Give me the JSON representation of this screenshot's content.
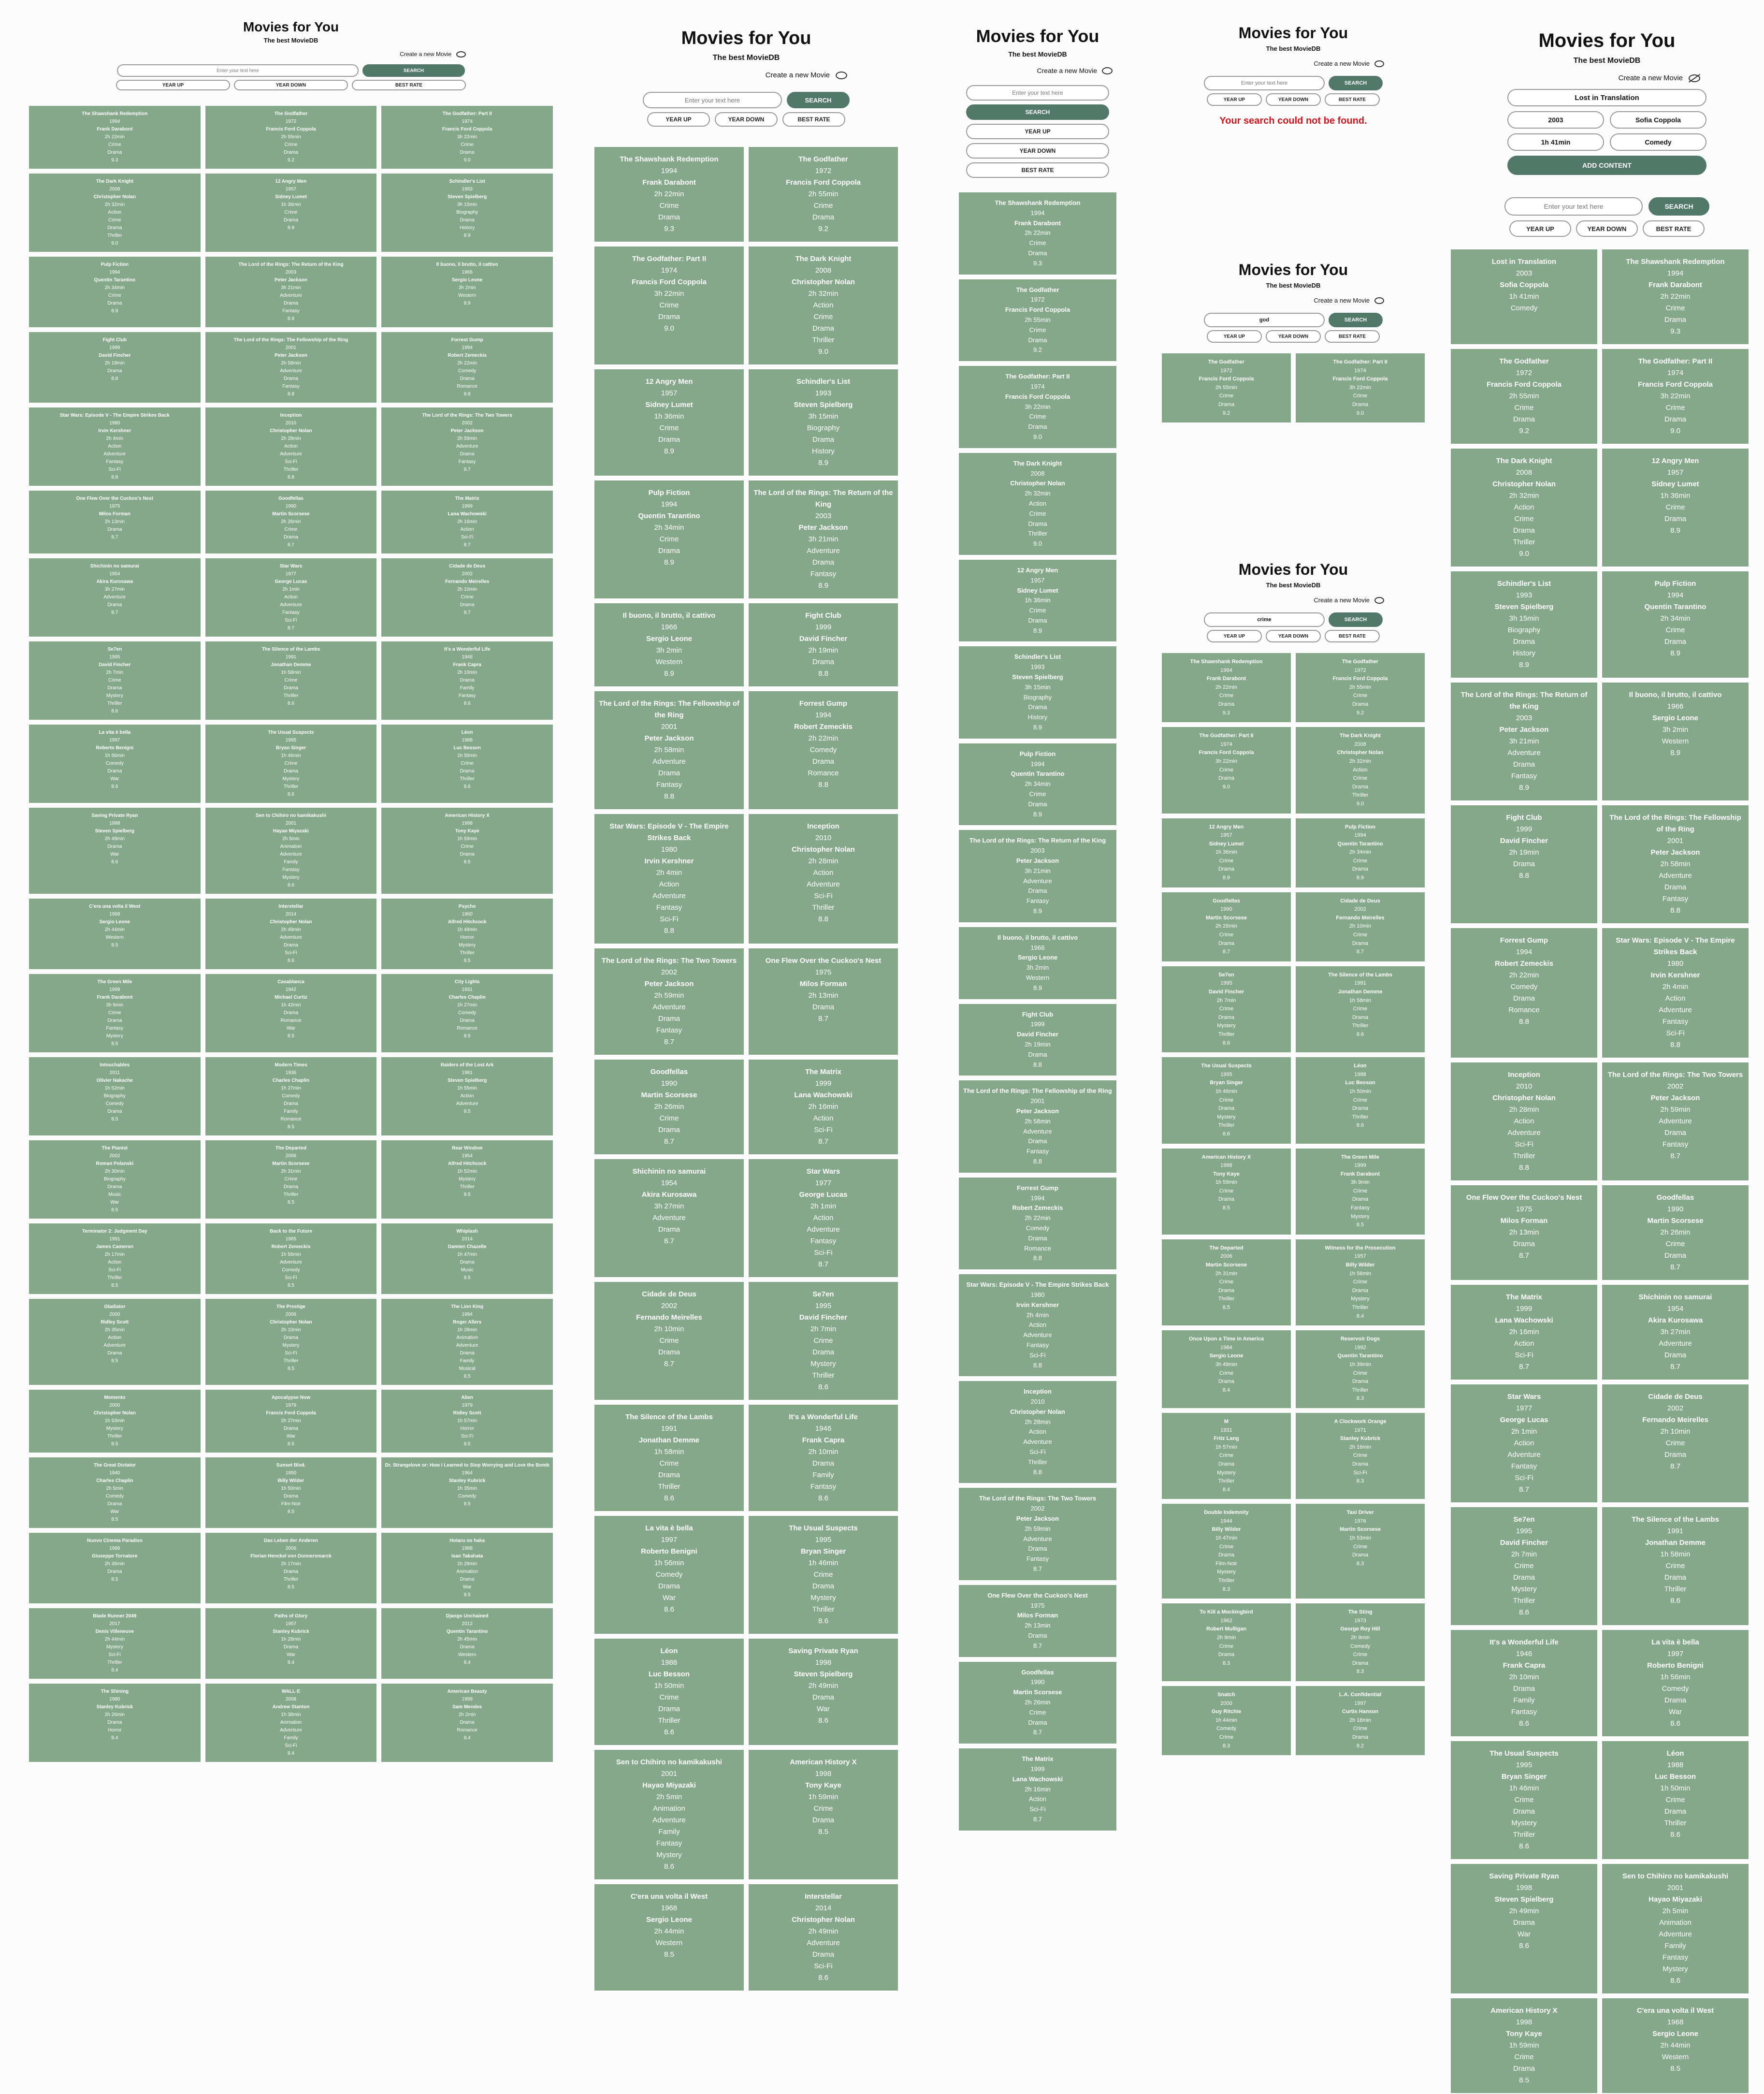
{
  "app": {
    "title": "Movies for You",
    "subtitle": "The best MovieDB",
    "create_label": "Create a new Movie",
    "search_placeholder": "Enter your text here",
    "search_label": "SEARCH",
    "year_up": "YEAR UP",
    "year_down": "YEAR DOWN",
    "best_rate": "BEST RATE",
    "add_content": "ADD CONTENT",
    "not_found": "Your search could not be found."
  },
  "form": {
    "title": "Lost in Translation",
    "year": "2003",
    "director": "Sofia Coppola",
    "duration": "1h 41min",
    "genre": "Comedy"
  },
  "queries": {
    "god": "god",
    "crime": "crime"
  },
  "movies": [
    {
      "t": "The Shawshank Redemption",
      "y": "1994",
      "d": "Frank Darabont",
      "r": "2h 22min",
      "g": [
        "Crime",
        "Drama"
      ],
      "s": "9.3"
    },
    {
      "t": "The Godfather",
      "y": "1972",
      "d": "Francis Ford Coppola",
      "r": "2h 55min",
      "g": [
        "Crime",
        "Drama"
      ],
      "s": "9.2"
    },
    {
      "t": "The Godfather: Part II",
      "y": "1974",
      "d": "Francis Ford Coppola",
      "r": "3h 22min",
      "g": [
        "Crime",
        "Drama"
      ],
      "s": "9.0"
    },
    {
      "t": "The Dark Knight",
      "y": "2008",
      "d": "Christopher Nolan",
      "r": "2h 32min",
      "g": [
        "Action",
        "Crime",
        "Drama",
        "Thriller"
      ],
      "s": "9.0"
    },
    {
      "t": "12 Angry Men",
      "y": "1957",
      "d": "Sidney Lumet",
      "r": "1h 36min",
      "g": [
        "Crime",
        "Drama"
      ],
      "s": "8.9"
    },
    {
      "t": "Schindler's List",
      "y": "1993",
      "d": "Steven Spielberg",
      "r": "3h 15min",
      "g": [
        "Biography",
        "Drama",
        "History"
      ],
      "s": "8.9"
    },
    {
      "t": "Pulp Fiction",
      "y": "1994",
      "d": "Quentin Tarantino",
      "r": "2h 34min",
      "g": [
        "Crime",
        "Drama"
      ],
      "s": "8.9"
    },
    {
      "t": "The Lord of the Rings: The Return of the King",
      "y": "2003",
      "d": "Peter Jackson",
      "r": "3h 21min",
      "g": [
        "Adventure",
        "Drama",
        "Fantasy"
      ],
      "s": "8.9"
    },
    {
      "t": "Il buono, il brutto, il cattivo",
      "y": "1966",
      "d": "Sergio Leone",
      "r": "3h 2min",
      "g": [
        "Western"
      ],
      "s": "8.9"
    },
    {
      "t": "Fight Club",
      "y": "1999",
      "d": "David Fincher",
      "r": "2h 19min",
      "g": [
        "Drama"
      ],
      "s": "8.8"
    },
    {
      "t": "The Lord of the Rings: The Fellowship of the Ring",
      "y": "2001",
      "d": "Peter Jackson",
      "r": "2h 58min",
      "g": [
        "Adventure",
        "Drama",
        "Fantasy"
      ],
      "s": "8.8"
    },
    {
      "t": "Forrest Gump",
      "y": "1994",
      "d": "Robert Zemeckis",
      "r": "2h 22min",
      "g": [
        "Comedy",
        "Drama",
        "Romance"
      ],
      "s": "8.8"
    },
    {
      "t": "Star Wars: Episode V - The Empire Strikes Back",
      "y": "1980",
      "d": "Irvin Kershner",
      "r": "2h 4min",
      "g": [
        "Action",
        "Adventure",
        "Fantasy",
        "Sci-Fi"
      ],
      "s": "8.8"
    },
    {
      "t": "Inception",
      "y": "2010",
      "d": "Christopher Nolan",
      "r": "2h 28min",
      "g": [
        "Action",
        "Adventure",
        "Sci-Fi",
        "Thriller"
      ],
      "s": "8.8"
    },
    {
      "t": "The Lord of the Rings: The Two Towers",
      "y": "2002",
      "d": "Peter Jackson",
      "r": "2h 59min",
      "g": [
        "Adventure",
        "Drama",
        "Fantasy"
      ],
      "s": "8.7"
    },
    {
      "t": "One Flew Over the Cuckoo's Nest",
      "y": "1975",
      "d": "Milos Forman",
      "r": "2h 13min",
      "g": [
        "Drama"
      ],
      "s": "8.7"
    },
    {
      "t": "Goodfellas",
      "y": "1990",
      "d": "Martin Scorsese",
      "r": "2h 26min",
      "g": [
        "Crime",
        "Drama"
      ],
      "s": "8.7"
    },
    {
      "t": "The Matrix",
      "y": "1999",
      "d": "Lana Wachowski",
      "r": "2h 16min",
      "g": [
        "Action",
        "Sci-Fi"
      ],
      "s": "8.7"
    },
    {
      "t": "Shichinin no samurai",
      "y": "1954",
      "d": "Akira Kurosawa",
      "r": "3h 27min",
      "g": [
        "Adventure",
        "Drama"
      ],
      "s": "8.7"
    },
    {
      "t": "Star Wars",
      "y": "1977",
      "d": "George Lucas",
      "r": "2h 1min",
      "g": [
        "Action",
        "Adventure",
        "Fantasy",
        "Sci-Fi"
      ],
      "s": "8.7"
    },
    {
      "t": "Cidade de Deus",
      "y": "2002",
      "d": "Fernando Meirelles",
      "r": "2h 10min",
      "g": [
        "Crime",
        "Drama"
      ],
      "s": "8.7"
    },
    {
      "t": "Se7en",
      "y": "1995",
      "d": "David Fincher",
      "r": "2h 7min",
      "g": [
        "Crime",
        "Drama",
        "Mystery",
        "Thriller"
      ],
      "s": "8.6"
    },
    {
      "t": "The Silence of the Lambs",
      "y": "1991",
      "d": "Jonathan Demme",
      "r": "1h 58min",
      "g": [
        "Crime",
        "Drama",
        "Thriller"
      ],
      "s": "8.6"
    },
    {
      "t": "It's a Wonderful Life",
      "y": "1946",
      "d": "Frank Capra",
      "r": "2h 10min",
      "g": [
        "Drama",
        "Family",
        "Fantasy"
      ],
      "s": "8.6"
    },
    {
      "t": "La vita è bella",
      "y": "1997",
      "d": "Roberto Benigni",
      "r": "1h 56min",
      "g": [
        "Comedy",
        "Drama",
        "War"
      ],
      "s": "8.6"
    },
    {
      "t": "The Usual Suspects",
      "y": "1995",
      "d": "Bryan Singer",
      "r": "1h 46min",
      "g": [
        "Crime",
        "Drama",
        "Mystery",
        "Thriller"
      ],
      "s": "8.6"
    },
    {
      "t": "Léon",
      "y": "1988",
      "d": "Luc Besson",
      "r": "1h 50min",
      "g": [
        "Crime",
        "Drama",
        "Thriller"
      ],
      "s": "8.6"
    },
    {
      "t": "Saving Private Ryan",
      "y": "1998",
      "d": "Steven Spielberg",
      "r": "2h 49min",
      "g": [
        "Drama",
        "War"
      ],
      "s": "8.6"
    },
    {
      "t": "Sen to Chihiro no kamikakushi",
      "y": "2001",
      "d": "Hayao Miyazaki",
      "r": "2h 5min",
      "g": [
        "Animation",
        "Adventure",
        "Family",
        "Fantasy",
        "Mystery"
      ],
      "s": "8.6"
    },
    {
      "t": "American History X",
      "y": "1998",
      "d": "Tony Kaye",
      "r": "1h 59min",
      "g": [
        "Crime",
        "Drama"
      ],
      "s": "8.5"
    },
    {
      "t": "C'era una volta il West",
      "y": "1968",
      "d": "Sergio Leone",
      "r": "2h 44min",
      "g": [
        "Western"
      ],
      "s": "8.5"
    },
    {
      "t": "Interstellar",
      "y": "2014",
      "d": "Christopher Nolan",
      "r": "2h 49min",
      "g": [
        "Adventure",
        "Drama",
        "Sci-Fi"
      ],
      "s": "8.6"
    },
    {
      "t": "Psycho",
      "y": "1960",
      "d": "Alfred Hitchcock",
      "r": "1h 49min",
      "g": [
        "Horror",
        "Mystery",
        "Thriller"
      ],
      "s": "8.5"
    },
    {
      "t": "The Green Mile",
      "y": "1999",
      "d": "Frank Darabont",
      "r": "3h 9min",
      "g": [
        "Crime",
        "Drama",
        "Fantasy",
        "Mystery"
      ],
      "s": "8.5"
    },
    {
      "t": "Casablanca",
      "y": "1942",
      "d": "Michael Curtiz",
      "r": "1h 42min",
      "g": [
        "Drama",
        "Romance",
        "War"
      ],
      "s": "8.5"
    },
    {
      "t": "City Lights",
      "y": "1931",
      "d": "Charles Chaplin",
      "r": "1h 27min",
      "g": [
        "Comedy",
        "Drama",
        "Romance"
      ],
      "s": "8.5"
    },
    {
      "t": "Intouchables",
      "y": "2011",
      "d": "Olivier Nakache",
      "r": "1h 52min",
      "g": [
        "Biography",
        "Comedy",
        "Drama"
      ],
      "s": "8.5"
    },
    {
      "t": "Modern Times",
      "y": "1936",
      "d": "Charles Chaplin",
      "r": "1h 27min",
      "g": [
        "Comedy",
        "Drama",
        "Family",
        "Romance"
      ],
      "s": "8.5"
    },
    {
      "t": "Raiders of the Lost Ark",
      "y": "1981",
      "d": "Steven Spielberg",
      "r": "1h 55min",
      "g": [
        "Action",
        "Adventure"
      ],
      "s": "8.5"
    },
    {
      "t": "The Pianist",
      "y": "2002",
      "d": "Roman Polanski",
      "r": "2h 30min",
      "g": [
        "Biography",
        "Drama",
        "Music",
        "War"
      ],
      "s": "8.5"
    },
    {
      "t": "The Departed",
      "y": "2006",
      "d": "Martin Scorsese",
      "r": "2h 31min",
      "g": [
        "Crime",
        "Drama",
        "Thriller"
      ],
      "s": "8.5"
    },
    {
      "t": "Rear Window",
      "y": "1954",
      "d": "Alfred Hitchcock",
      "r": "1h 52min",
      "g": [
        "Mystery",
        "Thriller"
      ],
      "s": "8.5"
    },
    {
      "t": "Terminator 2: Judgment Day",
      "y": "1991",
      "d": "James Cameron",
      "r": "2h 17min",
      "g": [
        "Action",
        "Sci-Fi",
        "Thriller"
      ],
      "s": "8.5"
    },
    {
      "t": "Back to the Future",
      "y": "1985",
      "d": "Robert Zemeckis",
      "r": "1h 56min",
      "g": [
        "Adventure",
        "Comedy",
        "Sci-Fi"
      ],
      "s": "8.5"
    },
    {
      "t": "Whiplash",
      "y": "2014",
      "d": "Damien Chazelle",
      "r": "1h 47min",
      "g": [
        "Drama",
        "Music"
      ],
      "s": "8.5"
    },
    {
      "t": "Gladiator",
      "y": "2000",
      "d": "Ridley Scott",
      "r": "2h 35min",
      "g": [
        "Action",
        "Adventure",
        "Drama"
      ],
      "s": "8.5"
    },
    {
      "t": "The Prestige",
      "y": "2006",
      "d": "Christopher Nolan",
      "r": "2h 10min",
      "g": [
        "Drama",
        "Mystery",
        "Sci-Fi",
        "Thriller"
      ],
      "s": "8.5"
    },
    {
      "t": "The Lion King",
      "y": "1994",
      "d": "Roger Allers",
      "r": "1h 28min",
      "g": [
        "Animation",
        "Adventure",
        "Drama",
        "Family",
        "Musical"
      ],
      "s": "8.5"
    },
    {
      "t": "Memento",
      "y": "2000",
      "d": "Christopher Nolan",
      "r": "1h 53min",
      "g": [
        "Mystery",
        "Thriller"
      ],
      "s": "8.5"
    },
    {
      "t": "Apocalypse Now",
      "y": "1979",
      "d": "Francis Ford Coppola",
      "r": "2h 27min",
      "g": [
        "Drama",
        "War"
      ],
      "s": "8.5"
    },
    {
      "t": "Alien",
      "y": "1979",
      "d": "Ridley Scott",
      "r": "1h 57min",
      "g": [
        "Horror",
        "Sci-Fi"
      ],
      "s": "8.5"
    },
    {
      "t": "The Great Dictator",
      "y": "1940",
      "d": "Charles Chaplin",
      "r": "2h 5min",
      "g": [
        "Comedy",
        "Drama",
        "War"
      ],
      "s": "8.5"
    },
    {
      "t": "Sunset Blvd.",
      "y": "1950",
      "d": "Billy Wilder",
      "r": "1h 50min",
      "g": [
        "Drama",
        "Film-Noir"
      ],
      "s": "8.5"
    },
    {
      "t": "Dr. Strangelove or: How I Learned to Stop Worrying and Love the Bomb",
      "y": "1964",
      "d": "Stanley Kubrick",
      "r": "1h 35min",
      "g": [
        "Comedy"
      ],
      "s": "8.5"
    },
    {
      "t": "Nuovo Cinema Paradiso",
      "y": "1988",
      "d": "Giuseppe Tornatore",
      "r": "2h 35min",
      "g": [
        "Drama"
      ],
      "s": "8.5"
    },
    {
      "t": "Das Leben der Anderen",
      "y": "2006",
      "d": "Florian Henckel von Donnersmarck",
      "r": "2h 17min",
      "g": [
        "Drama",
        "Thriller"
      ],
      "s": "8.5"
    },
    {
      "t": "Hotaru no haka",
      "y": "1988",
      "d": "Isao Takahata",
      "r": "1h 29min",
      "g": [
        "Animation",
        "Drama",
        "War"
      ],
      "s": "8.5"
    },
    {
      "t": "Blade Runner 2049",
      "y": "2017",
      "d": "Denis Villeneuve",
      "r": "2h 44min",
      "g": [
        "Mystery",
        "Sci-Fi",
        "Thriller"
      ],
      "s": "8.4"
    },
    {
      "t": "Paths of Glory",
      "y": "1957",
      "d": "Stanley Kubrick",
      "r": "1h 28min",
      "g": [
        "Drama",
        "War"
      ],
      "s": "8.4"
    },
    {
      "t": "Django Unchained",
      "y": "2012",
      "d": "Quentin Tarantino",
      "r": "2h 45min",
      "g": [
        "Drama",
        "Western"
      ],
      "s": "8.4"
    },
    {
      "t": "The Shining",
      "y": "1980",
      "d": "Stanley Kubrick",
      "r": "2h 26min",
      "g": [
        "Drama",
        "Horror"
      ],
      "s": "8.4"
    },
    {
      "t": "WALL·E",
      "y": "2008",
      "d": "Andrew Stanton",
      "r": "1h 38min",
      "g": [
        "Animation",
        "Adventure",
        "Family",
        "Sci-Fi"
      ],
      "s": "8.4"
    },
    {
      "t": "American Beauty",
      "y": "1999",
      "d": "Sam Mendes",
      "r": "2h 2min",
      "g": [
        "Drama",
        "Romance"
      ],
      "s": "8.4"
    }
  ],
  "crime_movies": [
    {
      "t": "The Shawshank Redemption",
      "y": "1994",
      "d": "Frank Darabont",
      "r": "2h 22min",
      "g": [
        "Crime",
        "Drama"
      ],
      "s": "9.3"
    },
    {
      "t": "The Godfather",
      "y": "1972",
      "d": "Francis Ford Coppola",
      "r": "2h 55min",
      "g": [
        "Crime",
        "Drama"
      ],
      "s": "9.2"
    },
    {
      "t": "The Godfather: Part II",
      "y": "1974",
      "d": "Francis Ford Coppola",
      "r": "3h 22min",
      "g": [
        "Crime",
        "Drama"
      ],
      "s": "9.0"
    },
    {
      "t": "The Dark Knight",
      "y": "2008",
      "d": "Christopher Nolan",
      "r": "2h 32min",
      "g": [
        "Action",
        "Crime",
        "Drama",
        "Thriller"
      ],
      "s": "9.0"
    },
    {
      "t": "12 Angry Men",
      "y": "1957",
      "d": "Sidney Lumet",
      "r": "1h 36min",
      "g": [
        "Crime",
        "Drama"
      ],
      "s": "8.9"
    },
    {
      "t": "Pulp Fiction",
      "y": "1994",
      "d": "Quentin Tarantino",
      "r": "2h 34min",
      "g": [
        "Crime",
        "Drama"
      ],
      "s": "8.9"
    },
    {
      "t": "Goodfellas",
      "y": "1990",
      "d": "Martin Scorsese",
      "r": "2h 26min",
      "g": [
        "Crime",
        "Drama"
      ],
      "s": "8.7"
    },
    {
      "t": "Cidade de Deus",
      "y": "2002",
      "d": "Fernando Meirelles",
      "r": "2h 10min",
      "g": [
        "Crime",
        "Drama"
      ],
      "s": "8.7"
    },
    {
      "t": "Se7en",
      "y": "1995",
      "d": "David Fincher",
      "r": "2h 7min",
      "g": [
        "Crime",
        "Drama",
        "Mystery",
        "Thriller"
      ],
      "s": "8.6"
    },
    {
      "t": "The Silence of the Lambs",
      "y": "1991",
      "d": "Jonathan Demme",
      "r": "1h 58min",
      "g": [
        "Crime",
        "Drama",
        "Thriller"
      ],
      "s": "8.6"
    },
    {
      "t": "The Usual Suspects",
      "y": "1995",
      "d": "Bryan Singer",
      "r": "1h 46min",
      "g": [
        "Crime",
        "Drama",
        "Mystery",
        "Thriller"
      ],
      "s": "8.6"
    },
    {
      "t": "Léon",
      "y": "1988",
      "d": "Luc Besson",
      "r": "1h 50min",
      "g": [
        "Crime",
        "Drama",
        "Thriller"
      ],
      "s": "8.6"
    },
    {
      "t": "American History X",
      "y": "1998",
      "d": "Tony Kaye",
      "r": "1h 59min",
      "g": [
        "Crime",
        "Drama"
      ],
      "s": "8.5"
    },
    {
      "t": "The Green Mile",
      "y": "1999",
      "d": "Frank Darabont",
      "r": "3h 9min",
      "g": [
        "Crime",
        "Drama",
        "Fantasy",
        "Mystery"
      ],
      "s": "8.5"
    },
    {
      "t": "The Departed",
      "y": "2006",
      "d": "Martin Scorsese",
      "r": "2h 31min",
      "g": [
        "Crime",
        "Drama",
        "Thriller"
      ],
      "s": "8.5"
    },
    {
      "t": "Witness for the Prosecution",
      "y": "1957",
      "d": "Billy Wilder",
      "r": "1h 56min",
      "g": [
        "Crime",
        "Drama",
        "Mystery",
        "Thriller"
      ],
      "s": "8.4"
    },
    {
      "t": "Once Upon a Time in America",
      "y": "1984",
      "d": "Sergio Leone",
      "r": "3h 49min",
      "g": [
        "Crime",
        "Drama"
      ],
      "s": "8.4"
    },
    {
      "t": "Reservoir Dogs",
      "y": "1992",
      "d": "Quentin Tarantino",
      "r": "1h 39min",
      "g": [
        "Crime",
        "Drama",
        "Thriller"
      ],
      "s": "8.3"
    },
    {
      "t": "M",
      "y": "1931",
      "d": "Fritz Lang",
      "r": "1h 57min",
      "g": [
        "Crime",
        "Drama",
        "Mystery",
        "Thriller"
      ],
      "s": "8.4"
    },
    {
      "t": "A Clockwork Orange",
      "y": "1971",
      "d": "Stanley Kubrick",
      "r": "2h 16min",
      "g": [
        "Crime",
        "Drama",
        "Sci-Fi"
      ],
      "s": "8.3"
    },
    {
      "t": "Double Indemnity",
      "y": "1944",
      "d": "Billy Wilder",
      "r": "1h 47min",
      "g": [
        "Crime",
        "Drama",
        "Film-Noir",
        "Mystery",
        "Thriller"
      ],
      "s": "8.3"
    },
    {
      "t": "Taxi Driver",
      "y": "1976",
      "d": "Martin Scorsese",
      "r": "1h 53min",
      "g": [
        "Crime",
        "Drama"
      ],
      "s": "8.3"
    },
    {
      "t": "To Kill a Mockingbird",
      "y": "1962",
      "d": "Robert Mulligan",
      "r": "2h 9min",
      "g": [
        "Crime",
        "Drama"
      ],
      "s": "8.3"
    },
    {
      "t": "The Sting",
      "y": "1973",
      "d": "George Roy Hill",
      "r": "2h 9min",
      "g": [
        "Comedy",
        "Crime",
        "Drama"
      ],
      "s": "8.3"
    },
    {
      "t": "Snatch",
      "y": "2000",
      "d": "Guy Ritchie",
      "r": "1h 44min",
      "g": [
        "Comedy",
        "Crime"
      ],
      "s": "8.3"
    },
    {
      "t": "L.A. Confidential",
      "y": "1997",
      "d": "Curtis Hanson",
      "r": "2h 18min",
      "g": [
        "Crime",
        "Drama"
      ],
      "s": "8.2"
    }
  ],
  "added_movie": {
    "t": "Lost in Translation",
    "y": "2003",
    "d": "Sofia Coppola",
    "r": "1h 41min",
    "g": [
      "Comedy"
    ],
    "s": ""
  }
}
